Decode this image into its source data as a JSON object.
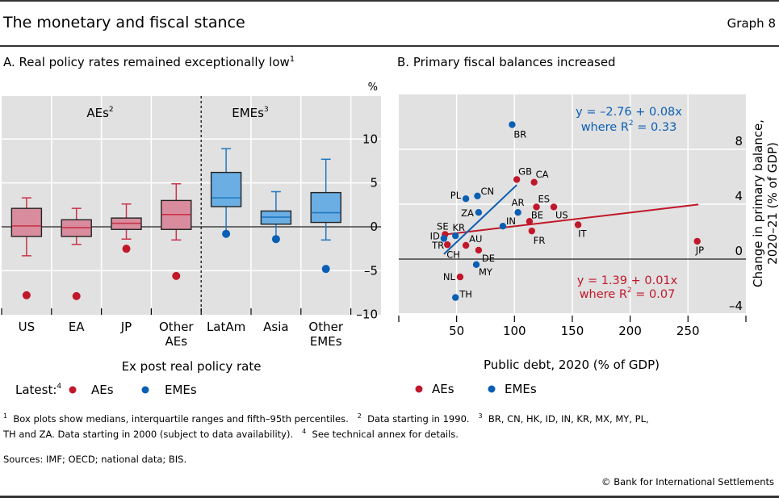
{
  "header": {
    "title": "The monetary and fiscal stance",
    "graph_number": "Graph 8"
  },
  "colors": {
    "ae": "#c0182a",
    "eme": "#0b5fb3",
    "ae_box": "#d98c9d",
    "eme_box": "#6aaee3",
    "plot_bg": "#e1e1e1"
  },
  "chart_data": [
    {
      "type": "box",
      "title": "A. Real policy rates remained exceptionally low",
      "title_footnote": "1",
      "unit_label": "%",
      "xlabel": "Ex post real policy rate",
      "ylim": [
        -10,
        15
      ],
      "yticks": [
        10,
        5,
        0,
        -5,
        -10
      ],
      "ytick_labels": [
        "10",
        "5",
        "0",
        "–5",
        "–10"
      ],
      "group_labels": [
        {
          "text": "AEs",
          "footnote": "2"
        },
        {
          "text": "EMEs",
          "footnote": "3"
        }
      ],
      "categories": [
        {
          "label": [
            "US"
          ],
          "group": "ae",
          "whisker_high": 3.3,
          "q3": 2.1,
          "median": 0.1,
          "q1": -1.1,
          "whisker_low": -3.3,
          "latest": -7.8
        },
        {
          "label": [
            "EA"
          ],
          "group": "ae",
          "whisker_high": 2.1,
          "q3": 0.8,
          "median": -0.1,
          "q1": -1.1,
          "whisker_low": -2.0,
          "latest": -7.9
        },
        {
          "label": [
            "JP"
          ],
          "group": "ae",
          "whisker_high": 2.6,
          "q3": 1.0,
          "median": 0.4,
          "q1": -0.3,
          "whisker_low": -1.4,
          "latest": -2.5
        },
        {
          "label": [
            "Other",
            "AEs"
          ],
          "group": "ae",
          "whisker_high": 4.9,
          "q3": 3.0,
          "median": 1.4,
          "q1": -0.3,
          "whisker_low": -1.5,
          "latest": -5.6
        },
        {
          "label": [
            "LatAm"
          ],
          "group": "eme",
          "whisker_high": 8.9,
          "q3": 6.2,
          "median": 3.3,
          "q1": 2.3,
          "whisker_low": -0.5,
          "latest": -0.8
        },
        {
          "label": [
            "Asia"
          ],
          "group": "eme",
          "whisker_high": 4.0,
          "q3": 1.8,
          "median": 1.1,
          "q1": 0.3,
          "whisker_low": -1.2,
          "latest": -1.4
        },
        {
          "label": [
            "Other",
            "EMEs"
          ],
          "group": "eme",
          "whisker_high": 7.7,
          "q3": 3.9,
          "median": 1.6,
          "q1": 0.5,
          "whisker_low": -1.5,
          "latest": -4.8
        }
      ],
      "legend": {
        "prefix": "Latest:",
        "prefix_footnote": "4",
        "items": [
          "AEs",
          "EMEs"
        ],
        "placement": "bottom-left"
      }
    },
    {
      "type": "scatter",
      "title": "B. Primary fiscal balances increased",
      "xlabel": "Public debt, 2020 (% of GDP)",
      "ylabel": "Change in primary balance, 2020–21 (% of GDP)",
      "xlim": [
        0,
        300
      ],
      "ylim": [
        -4,
        12
      ],
      "xticks": [
        50,
        100,
        150,
        200,
        250
      ],
      "yticks": [
        8,
        4,
        0,
        -4
      ],
      "ytick_labels": [
        "8",
        "4",
        "0",
        "–4"
      ],
      "series": [
        {
          "name": "AEs",
          "key": "ae",
          "points": [
            {
              "label": "GB",
              "x": 102,
              "y": 5.8
            },
            {
              "label": "CA",
              "x": 117,
              "y": 5.6
            },
            {
              "label": "ES",
              "x": 119,
              "y": 3.8
            },
            {
              "label": "US",
              "x": 134,
              "y": 3.8
            },
            {
              "label": "BE",
              "x": 113,
              "y": 2.75
            },
            {
              "label": "FR",
              "x": 115,
              "y": 2.05
            },
            {
              "label": "IT",
              "x": 155,
              "y": 2.5
            },
            {
              "label": "JP",
              "x": 258,
              "y": 1.3
            },
            {
              "label": "SE",
              "x": 40,
              "y": 1.8
            },
            {
              "label": "TR",
              "x": 42,
              "y": 1.05
            },
            {
              "label": "CH",
              "x": 43,
              "y": 0.9
            },
            {
              "label": "AU",
              "x": 58,
              "y": 1.0
            },
            {
              "label": "DE",
              "x": 69,
              "y": 0.65
            },
            {
              "label": "NL",
              "x": 53,
              "y": -1.3
            }
          ],
          "fit": {
            "intercept": 1.39,
            "slope": 0.01,
            "x_range": [
              38,
              259
            ],
            "text": [
              "y = 1.39 + 0.01x",
              "where R",
              "2",
              " = 0.07"
            ]
          }
        },
        {
          "name": "EMEs",
          "key": "eme",
          "points": [
            {
              "label": "BR",
              "x": 98,
              "y": 9.8
            },
            {
              "label": "PL",
              "x": 58,
              "y": 4.4
            },
            {
              "label": "CN",
              "x": 68,
              "y": 4.6
            },
            {
              "label": "ZA",
              "x": 69,
              "y": 3.4
            },
            {
              "label": "AR",
              "x": 103,
              "y": 3.4
            },
            {
              "label": "IN",
              "x": 90,
              "y": 2.4
            },
            {
              "label": "KR",
              "x": 49,
              "y": 1.7
            },
            {
              "label": "ID",
              "x": 39,
              "y": 1.5
            },
            {
              "label": "MY",
              "x": 67,
              "y": -0.4
            },
            {
              "label": "TH",
              "x": 49,
              "y": -2.8
            }
          ],
          "fit": {
            "intercept": -2.76,
            "slope": 0.08,
            "x_range": [
              39,
              102
            ],
            "text": [
              "y = –2.76 + 0.08x",
              "where R",
              "2",
              " = 0.33"
            ]
          }
        }
      ],
      "legend": {
        "items": [
          "AEs",
          "EMEs"
        ],
        "placement": "bottom-left"
      }
    }
  ],
  "footnotes": {
    "line1": [
      {
        "n": "1",
        "text": "Box plots show medians, interquartile ranges and fifth–95th percentiles."
      },
      {
        "n": "2",
        "text": "Data starting in 1990."
      },
      {
        "n": "3",
        "text": "BR, CN, HK, ID, IN, KR, MX, MY, PL,"
      }
    ],
    "line2": [
      {
        "n": "",
        "text": "TH and ZA. Data starting in 2000 (subject to data availability)."
      },
      {
        "n": "4",
        "text": "See technical annex for details."
      }
    ],
    "sources": "Sources: IMF; OECD; national data; BIS.",
    "copyright": "© Bank for International Settlements"
  }
}
